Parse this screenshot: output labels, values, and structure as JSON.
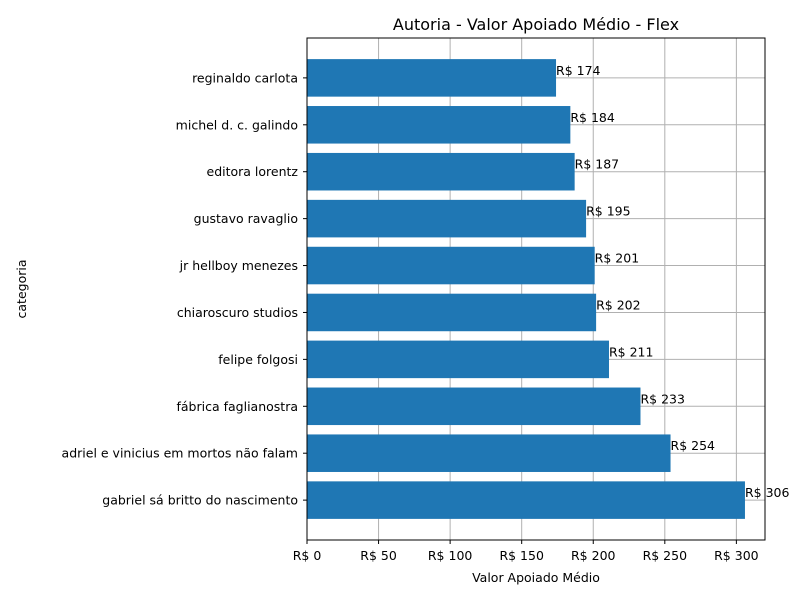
{
  "chart_data": {
    "type": "bar",
    "orientation": "horizontal",
    "title": "Autoria - Valor Apoiado Médio - Flex",
    "xlabel": "Valor Apoiado Médio",
    "ylabel": "categoria",
    "xlim": [
      0,
      320
    ],
    "xticks": [
      0,
      50,
      100,
      150,
      200,
      250,
      300
    ],
    "tick_prefix": "R$ ",
    "grid": true,
    "bar_color": "#1f77b4",
    "categories": [
      "reginaldo carlota",
      "michel d. c. galindo",
      "editora lorentz",
      "gustavo ravaglio",
      "jr hellboy menezes",
      "chiaroscuro studios",
      "felipe folgosi",
      "fábrica faglianostra",
      "adriel e vinicius em mortos não falam",
      "gabriel sá britto do nascimento"
    ],
    "values": [
      174,
      184,
      187,
      195,
      201,
      202,
      211,
      233,
      254,
      306
    ],
    "data_labels": [
      "R$ 174",
      "R$ 184",
      "R$ 187",
      "R$ 195",
      "R$ 201",
      "R$ 202",
      "R$ 211",
      "R$ 233",
      "R$ 254",
      "R$ 306"
    ]
  }
}
